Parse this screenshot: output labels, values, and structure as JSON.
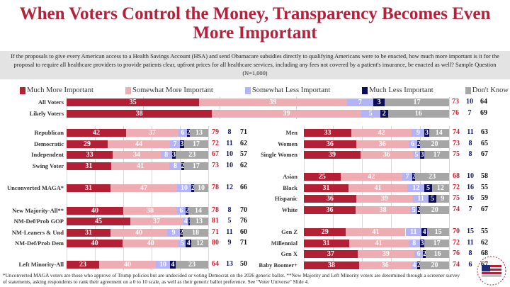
{
  "title": "When Voters Control the Money, Transparency Becomes Even More Important",
  "question": "If the proposals to give every American access to a Health Savings Account (HSA) and send Obamacare subsidies directly to qualifying Americans were to be enacted, how much more important is it for the proposal to require all healthcare providers to provide patients clear, upfront prices for all healthcare services, including any fees not covered by a patient's insurance, be enacted as well?  Sample Question (N=1,000)",
  "footnote": "*Unconverted MAGA voters are those who approve of Trump policies but are undecided or voting Democrat on the 2026 generic ballot. **New Majority and Left Minority voters are determined through a screener survey of statements, asking respondents to rank their agreement on a 0 to 10 scale, as well as their generic ballot preference. See \"Voter Universe\" Slide 4.",
  "logo_text": "America's New Majority Project",
  "chart_data": {
    "type": "bar",
    "stacked": true,
    "orientation": "horizontal",
    "legend_position": "top",
    "series_names": [
      "Much More Important",
      "Somewhat More Important",
      "Somewhat Less Important",
      "Much Less Important",
      "Don't Know"
    ],
    "colors": [
      "#b32036",
      "#eeacb3",
      "#b3b3f7",
      "#0b0b5c",
      "#a6a6a6"
    ],
    "total_colors": [
      "#d01f2e",
      "#141466",
      "#111111"
    ],
    "groups": [
      {
        "panel": "top",
        "rows": [
          {
            "label": "All Voters",
            "values": [
              35,
              39,
              7,
              3,
              17
            ],
            "totals": [
              73,
              10,
              64
            ]
          },
          {
            "label": "Likely Voters",
            "values": [
              38,
              39,
              5,
              2,
              16
            ],
            "totals": [
              76,
              7,
              69
            ]
          }
        ]
      },
      {
        "panel": "left",
        "rows": [
          {
            "label": "Republican",
            "values": [
              42,
              37,
              6,
              2,
              13
            ],
            "totals": [
              79,
              8,
              71
            ]
          },
          {
            "label": "Democratic",
            "values": [
              29,
              44,
              7,
              3,
              17
            ],
            "totals": [
              72,
              11,
              62
            ]
          },
          {
            "label": "Independent",
            "values": [
              33,
              34,
              8,
              3,
              23
            ],
            "totals": [
              67,
              10,
              57
            ]
          },
          {
            "label": "Swing Voter",
            "values": [
              31,
              41,
              8,
              2,
              17
            ],
            "totals": [
              73,
              10,
              62
            ]
          },
          {
            "label": "Unconverted MAGA*",
            "values": [
              31,
              47,
              10,
              2,
              10
            ],
            "totals": [
              78,
              12,
              66
            ]
          },
          {
            "label": "New Majority-All**",
            "values": [
              40,
              38,
              6,
              2,
              14
            ],
            "totals": [
              78,
              8,
              70
            ]
          },
          {
            "label": "NM-Def/Prob GOP",
            "values": [
              45,
              37,
              4,
              1,
              13
            ],
            "totals": [
              81,
              5,
              76
            ]
          },
          {
            "label": "NM-Leaners & Und",
            "values": [
              31,
              40,
              9,
              2,
              18
            ],
            "totals": [
              71,
              11,
              60
            ]
          },
          {
            "label": "NM-Def/Prob Dem",
            "values": [
              40,
              40,
              5,
              4,
              12
            ],
            "totals": [
              80,
              9,
              71
            ]
          },
          {
            "label": "Left Minority-All",
            "values": [
              23,
              40,
              10,
              4,
              23
            ],
            "totals": [
              64,
              13,
              50
            ]
          }
        ]
      },
      {
        "panel": "right",
        "rows": [
          {
            "label": "Men",
            "values": [
              33,
              42,
              9,
              3,
              14
            ],
            "totals": [
              74,
              11,
              63
            ]
          },
          {
            "label": "Women",
            "values": [
              36,
              36,
              6,
              2,
              20
            ],
            "totals": [
              73,
              8,
              65
            ]
          },
          {
            "label": "Single Women",
            "values": [
              39,
              36,
              5,
              3,
              17
            ],
            "totals": [
              75,
              8,
              67
            ]
          },
          {
            "label": "Asian",
            "values": [
              25,
              42,
              7,
              2,
              23
            ],
            "totals": [
              68,
              10,
              58
            ]
          },
          {
            "label": "Black",
            "values": [
              31,
              41,
              12,
              5,
              12
            ],
            "totals": [
              72,
              16,
              55
            ]
          },
          {
            "label": "Hispanic",
            "values": [
              36,
              39,
              11,
              5,
              9
            ],
            "totals": [
              75,
              16,
              59
            ]
          },
          {
            "label": "White",
            "values": [
              36,
              38,
              5,
              2,
              20
            ],
            "totals": [
              74,
              7,
              67
            ]
          },
          {
            "label": "Gen Z",
            "values": [
              29,
              41,
              11,
              4,
              15
            ],
            "totals": [
              70,
              15,
              55
            ]
          },
          {
            "label": "Millennial",
            "values": [
              31,
              41,
              8,
              3,
              17
            ],
            "totals": [
              72,
              11,
              62
            ]
          },
          {
            "label": "Gen X",
            "values": [
              37,
              39,
              6,
              2,
              16
            ],
            "totals": [
              76,
              8,
              68
            ]
          },
          {
            "label": "Baby Boomer+",
            "values": [
              38,
              36,
              4,
              2,
              20
            ],
            "totals": [
              74,
              6,
              67
            ]
          }
        ]
      }
    ]
  }
}
